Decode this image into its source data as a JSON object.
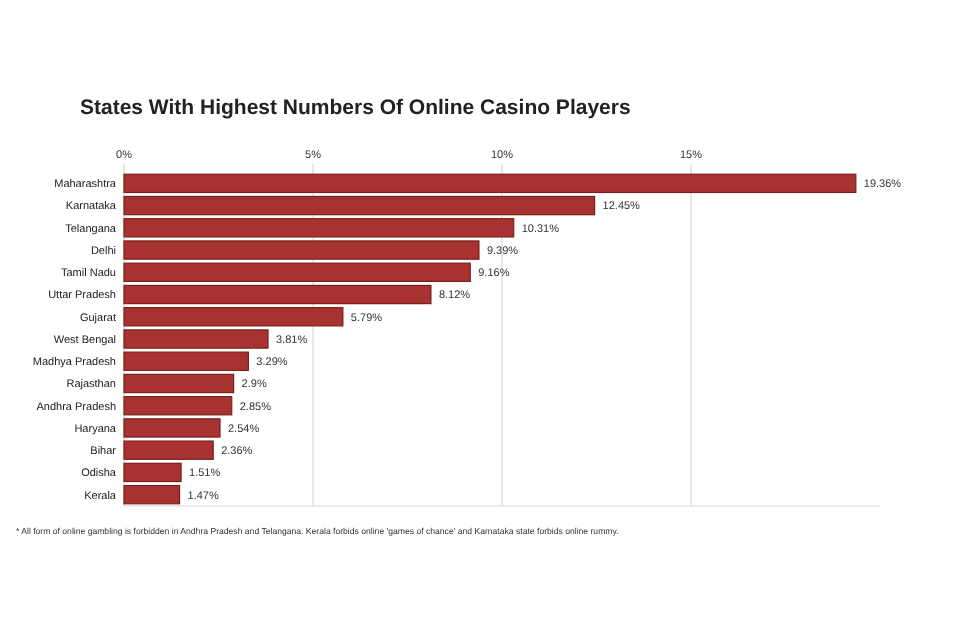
{
  "chart_data": {
    "type": "bar",
    "orientation": "horizontal",
    "title": "States With Highest Numbers Of Online Casino Players",
    "categories": [
      "Maharashtra",
      "Karnataka",
      "Telangana",
      "Delhi",
      "Tamil Nadu",
      "Uttar Pradesh",
      "Gujarat",
      "West Bengal",
      "Madhya Pradesh",
      "Rajasthan",
      "Andhra Pradesh",
      "Haryana",
      "Bihar",
      "Odisha",
      "Kerala"
    ],
    "values": [
      19.36,
      12.45,
      10.31,
      9.39,
      9.16,
      8.12,
      5.79,
      3.81,
      3.29,
      2.9,
      2.85,
      2.54,
      2.36,
      1.51,
      1.47
    ],
    "value_labels": [
      "19.36%",
      "12.45%",
      "10.31%",
      "9.39%",
      "9.16%",
      "8.12%",
      "5.79%",
      "3.81%",
      "3.29%",
      "2.9%",
      "2.85%",
      "2.54%",
      "2.36%",
      "1.51%",
      "1.47%"
    ],
    "color": "#a83230",
    "xlim": [
      0,
      20
    ],
    "xticks": [
      {
        "value": 0,
        "label": "0%"
      },
      {
        "value": 5,
        "label": "5%"
      },
      {
        "value": 10,
        "label": "10%"
      },
      {
        "value": 15,
        "label": "15%"
      }
    ],
    "grid": "x",
    "annotations": [
      "* All form of online gambling is forbidden in Andhra Pradesh and Telangana. Kerala forbids online 'games of chance' and Karnataka state forbids online rummy."
    ]
  }
}
